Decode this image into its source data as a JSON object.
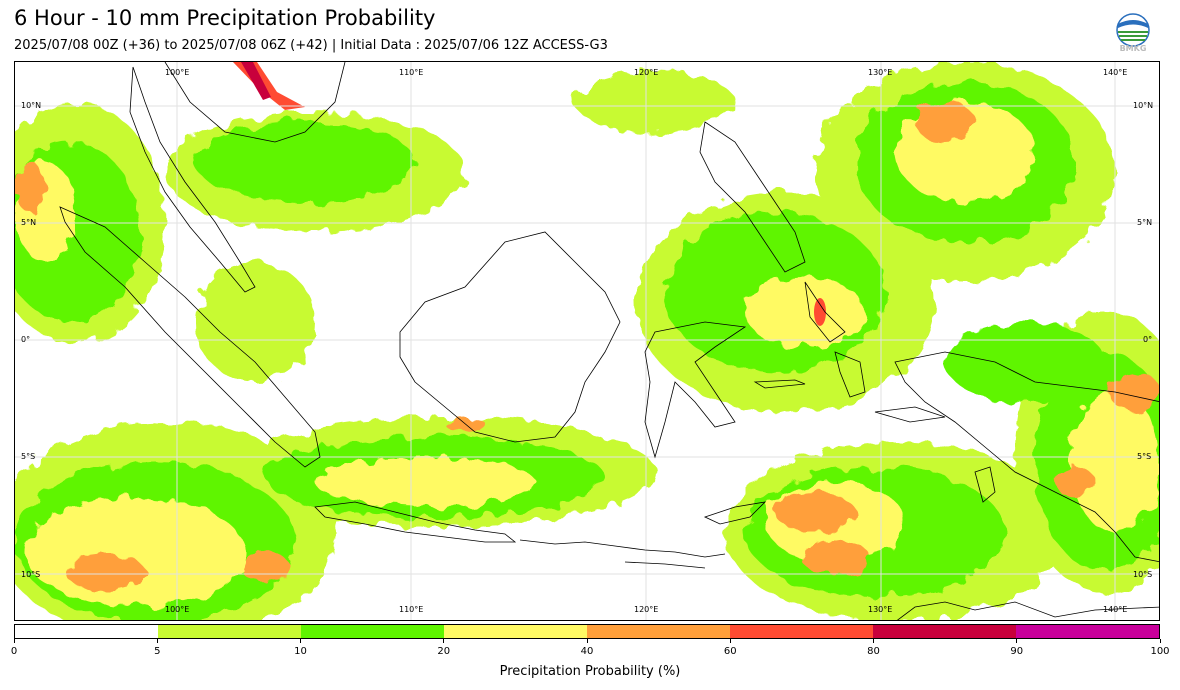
{
  "header": {
    "title": "6 Hour - 10 mm Precipitation Probability",
    "subtitle": "2025/07/08 00Z (+36) to 2025/07/08 06Z (+42) | Initial Data : 2025/07/06 12Z ACCESS-G3",
    "logo_text": "BMKG"
  },
  "map": {
    "lon_labels": [
      "100°E",
      "110°E",
      "120°E",
      "130°E",
      "140°E"
    ],
    "lat_labels": [
      "10°N",
      "5°N",
      "0°",
      "5°S",
      "10°S"
    ]
  },
  "colorbar": {
    "label": "Precipitation Probability (%)",
    "ticks": [
      "0",
      "5",
      "10",
      "20",
      "40",
      "60",
      "80",
      "90",
      "100"
    ],
    "colors": [
      "#ffffff",
      "#c8fa32",
      "#5ff500",
      "#fffa64",
      "#ff9f3a",
      "#ff4b32",
      "#c8003c",
      "#c8009b"
    ]
  }
}
